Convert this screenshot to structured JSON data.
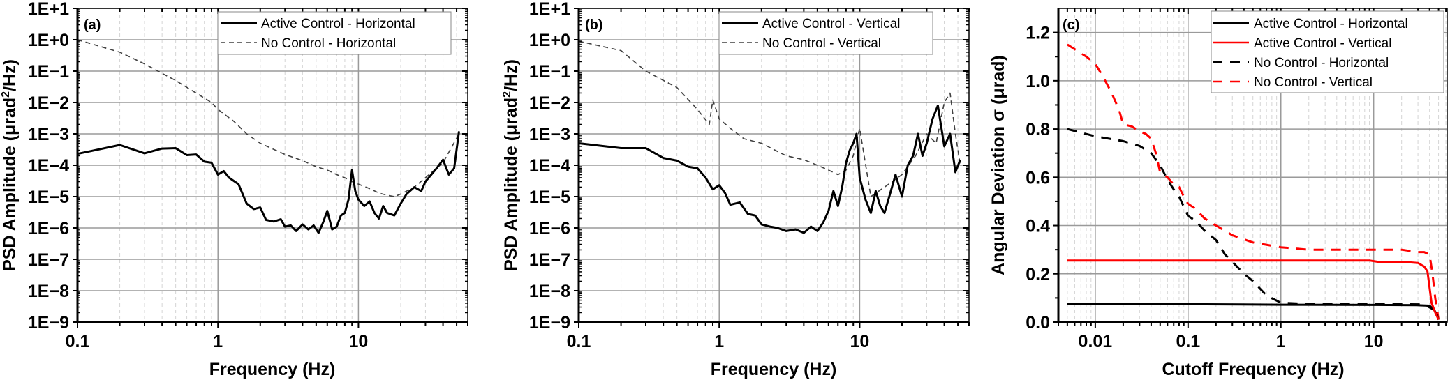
{
  "chart_data": [
    {
      "id": "a",
      "type": "line",
      "panel_label": "(a)",
      "title": "",
      "xlabel": "Frequency (Hz)",
      "ylabel": "PSD Amplitude (μrad²/Hz)",
      "xscale": "log",
      "yscale": "log",
      "xlim": [
        0.1,
        60
      ],
      "ylim": [
        1e-09,
        10
      ],
      "xticks": [
        "0.1",
        "1",
        "10"
      ],
      "yticks": [
        "1E+1",
        "1E+0",
        "1E−1",
        "1E−2",
        "1E−3",
        "1E−4",
        "1E−5",
        "1E−6",
        "1E−7",
        "1E−8",
        "1E−9"
      ],
      "grid": true,
      "legend_position": "upper right",
      "series": [
        {
          "name": "Active Control - Horizontal",
          "style": "solid",
          "color": "#000000",
          "x": [
            0.1,
            0.2,
            0.3,
            0.4,
            0.5,
            0.6,
            0.7,
            0.8,
            0.9,
            1.0,
            1.1,
            1.2,
            1.4,
            1.6,
            1.8,
            2.0,
            2.2,
            2.5,
            2.8,
            3.0,
            3.3,
            3.6,
            4.0,
            4.4,
            4.8,
            5.2,
            5.6,
            6.0,
            6.5,
            7.0,
            7.5,
            8.0,
            8.5,
            9.0,
            9.5,
            10,
            11,
            12,
            13,
            14,
            15,
            16,
            18,
            20,
            22,
            25,
            28,
            30,
            33,
            36,
            40,
            44,
            48,
            52
          ],
          "y": [
            0.00023,
            0.00044,
            0.00024,
            0.00034,
            0.00035,
            0.00021,
            0.00022,
            0.00013,
            0.00012,
            5e-05,
            6.5e-05,
            4e-05,
            2.5e-05,
            6e-06,
            4e-06,
            4.5e-06,
            1.8e-06,
            1.6e-06,
            1.9e-06,
            1.1e-06,
            1.2e-06,
            8e-07,
            1.3e-06,
            9e-07,
            1.2e-06,
            7e-07,
            1.5e-06,
            3.5e-06,
            9e-07,
            1.1e-06,
            2.5e-06,
            3e-06,
            8e-06,
            7e-05,
            1.5e-05,
            8e-06,
            5e-06,
            7e-06,
            3e-06,
            2e-06,
            5e-06,
            3e-06,
            2.5e-06,
            6e-06,
            1.2e-05,
            2e-05,
            1.5e-05,
            3e-05,
            5e-05,
            8e-05,
            0.00015,
            5e-05,
            8e-05,
            0.0012
          ]
        },
        {
          "name": "No Control - Horizontal",
          "style": "dashed",
          "color": "#404040",
          "x": [
            0.1,
            0.2,
            0.3,
            0.4,
            0.5,
            0.7,
            0.9,
            1.0,
            1.3,
            1.6,
            2.0,
            3.0,
            4.0,
            5.0,
            6.0,
            7.0,
            8.0,
            9.0,
            10,
            12,
            14,
            16,
            18,
            20,
            25,
            30,
            40,
            52
          ],
          "y": [
            1.0,
            0.4,
            0.17,
            0.085,
            0.05,
            0.02,
            0.01,
            0.006,
            0.0025,
            0.001,
            0.0005,
            0.00022,
            0.00014,
            9e-05,
            7e-05,
            5e-05,
            4e-05,
            3e-05,
            2.5e-05,
            1.8e-05,
            1.3e-05,
            1.1e-05,
            1e-05,
            1.2e-05,
            2e-05,
            4e-05,
            0.00012,
            0.001
          ]
        }
      ]
    },
    {
      "id": "b",
      "type": "line",
      "panel_label": "(b)",
      "title": "",
      "xlabel": "Frequency (Hz)",
      "ylabel": "PSD Amplitude (μrad²/Hz)",
      "xscale": "log",
      "yscale": "log",
      "xlim": [
        0.1,
        60
      ],
      "ylim": [
        1e-09,
        10
      ],
      "xticks": [
        "0.1",
        "1",
        "10"
      ],
      "yticks": [
        "1E+1",
        "1E+0",
        "1E−1",
        "1E−2",
        "1E−3",
        "1E−4",
        "1E−5",
        "1E−6",
        "1E−7",
        "1E−8",
        "1E−9"
      ],
      "grid": true,
      "legend_position": "upper right",
      "series": [
        {
          "name": "Active Control - Vertical",
          "style": "solid",
          "color": "#000000",
          "x": [
            0.1,
            0.2,
            0.3,
            0.4,
            0.5,
            0.6,
            0.7,
            0.8,
            0.9,
            1.0,
            1.1,
            1.2,
            1.4,
            1.6,
            1.8,
            2.0,
            2.3,
            2.6,
            3.0,
            3.5,
            4.0,
            4.5,
            5.0,
            5.5,
            6.0,
            6.5,
            7.0,
            7.5,
            8.0,
            8.5,
            9.0,
            9.5,
            10,
            11,
            12,
            13,
            14,
            15,
            16,
            18,
            20,
            22,
            24,
            26,
            28,
            30,
            33,
            36,
            40,
            44,
            48,
            52
          ],
          "y": [
            0.0005,
            0.00035,
            0.00035,
            0.00017,
            0.00014,
            9e-05,
            8e-05,
            4e-05,
            1.7e-05,
            2.3e-05,
            1.3e-05,
            5.5e-06,
            6.5e-06,
            2.8e-06,
            2.5e-06,
            1.3e-06,
            1.1e-06,
            1e-06,
            8e-07,
            9e-07,
            7e-07,
            1.1e-06,
            8e-07,
            1.5e-06,
            3.5e-06,
            1.5e-05,
            5e-06,
            2e-05,
            0.00012,
            0.0003,
            0.0005,
            0.001,
            4e-05,
            8e-06,
            3e-06,
            1.5e-05,
            5e-06,
            3e-06,
            8e-06,
            5e-05,
            1e-05,
            0.0001,
            0.0002,
            0.001,
            0.0002,
            0.0005,
            0.003,
            0.008,
            0.0004,
            0.001,
            6e-05,
            0.00015
          ]
        },
        {
          "name": "No Control - Vertical",
          "style": "dashed",
          "color": "#404040",
          "x": [
            0.1,
            0.2,
            0.3,
            0.5,
            0.7,
            0.85,
            0.9,
            1.0,
            1.2,
            1.5,
            2.0,
            2.5,
            3.0,
            4.0,
            5.0,
            6.0,
            7.0,
            8.0,
            9.0,
            10,
            12,
            15,
            20,
            25,
            30,
            35,
            40,
            44,
            48,
            52
          ],
          "y": [
            0.9,
            0.45,
            0.1,
            0.03,
            0.006,
            0.002,
            0.012,
            0.003,
            0.0015,
            0.0007,
            0.0005,
            0.0003,
            0.0002,
            0.00015,
            0.0001,
            7e-05,
            5e-05,
            7e-05,
            0.0002,
            0.0015,
            1e-05,
            2e-05,
            5e-05,
            0.0002,
            0.001,
            0.0005,
            0.01,
            0.02,
            0.001,
            0.0001
          ]
        }
      ]
    },
    {
      "id": "c",
      "type": "line",
      "panel_label": "(c)",
      "title": "",
      "xlabel": "Cutoff Frequency (Hz)",
      "ylabel": "Angular Deviation σ (μrad)",
      "xscale": "log",
      "yscale": "linear",
      "xlim": [
        0.004,
        62
      ],
      "ylim": [
        0.0,
        1.3
      ],
      "xticks": [
        "0.01",
        "0.1",
        "1",
        "10"
      ],
      "yticks": [
        "0.0",
        "0.2",
        "0.4",
        "0.6",
        "0.8",
        "1.0",
        "1.2"
      ],
      "grid": true,
      "legend_position": "upper right",
      "series": [
        {
          "name": "Active Control - Horizontal",
          "style": "solid",
          "color": "#000000",
          "x": [
            0.005,
            0.01,
            0.1,
            1,
            10,
            30,
            40,
            45,
            48,
            50
          ],
          "y": [
            0.075,
            0.075,
            0.074,
            0.072,
            0.071,
            0.07,
            0.068,
            0.05,
            0.03,
            0.01
          ]
        },
        {
          "name": "Active Control - Vertical",
          "style": "solid",
          "color": "#ff0000",
          "x": [
            0.005,
            0.01,
            0.1,
            1,
            9,
            11,
            20,
            30,
            35,
            38,
            42,
            46,
            50
          ],
          "y": [
            0.255,
            0.255,
            0.255,
            0.255,
            0.255,
            0.25,
            0.25,
            0.245,
            0.23,
            0.21,
            0.08,
            0.04,
            0.01
          ]
        },
        {
          "name": "No Control - Horizontal",
          "style": "dashed",
          "color": "#000000",
          "x": [
            0.005,
            0.01,
            0.02,
            0.03,
            0.04,
            0.05,
            0.06,
            0.07,
            0.08,
            0.1,
            0.12,
            0.15,
            0.2,
            0.25,
            0.3,
            0.4,
            0.5,
            0.7,
            1,
            2,
            5,
            10,
            20,
            35,
            45,
            50
          ],
          "y": [
            0.8,
            0.77,
            0.75,
            0.73,
            0.7,
            0.65,
            0.59,
            0.55,
            0.52,
            0.44,
            0.42,
            0.38,
            0.34,
            0.28,
            0.25,
            0.2,
            0.17,
            0.11,
            0.08,
            0.075,
            0.075,
            0.075,
            0.074,
            0.073,
            0.05,
            0.01
          ]
        },
        {
          "name": "No Control - Vertical",
          "style": "dashed",
          "color": "#ff0000",
          "x": [
            0.005,
            0.008,
            0.01,
            0.012,
            0.015,
            0.018,
            0.02,
            0.025,
            0.03,
            0.035,
            0.04,
            0.045,
            0.05,
            0.06,
            0.07,
            0.08,
            0.09,
            0.1,
            0.12,
            0.15,
            0.2,
            0.3,
            0.5,
            1,
            2,
            5,
            10,
            20,
            30,
            35,
            40,
            43,
            46,
            50
          ],
          "y": [
            1.15,
            1.1,
            1.07,
            1.02,
            0.95,
            0.88,
            0.82,
            0.81,
            0.79,
            0.78,
            0.76,
            0.7,
            0.62,
            0.6,
            0.57,
            0.56,
            0.52,
            0.49,
            0.47,
            0.43,
            0.4,
            0.36,
            0.33,
            0.31,
            0.3,
            0.3,
            0.3,
            0.3,
            0.29,
            0.29,
            0.28,
            0.2,
            0.1,
            0.01
          ]
        }
      ]
    }
  ],
  "panels": {
    "a": {
      "label": "(a)",
      "xlabel": "Frequency (Hz)",
      "ylabel_main": "PSD Amplitude (μrad",
      "ylabel_sup": "2",
      "ylabel_tail": "/Hz)",
      "legend": [
        "Active Control - Horizontal",
        "No Control - Horizontal"
      ]
    },
    "b": {
      "label": "(b)",
      "xlabel": "Frequency (Hz)",
      "ylabel_main": "PSD Amplitude (μrad",
      "ylabel_sup": "2",
      "ylabel_tail": "/Hz)",
      "legend": [
        "Active Control - Vertical",
        "No Control - Vertical"
      ]
    },
    "c": {
      "label": "(c)",
      "xlabel": "Cutoff Frequency (Hz)",
      "ylabel_main": "Angular Deviation σ (μrad)",
      "legend": [
        "Active Control - Horizontal",
        "Active Control - Vertical",
        "No Control - Horizontal",
        "No Control - Vertical"
      ]
    }
  },
  "colors": {
    "black": "#000000",
    "red": "#ff0000",
    "dark_gray": "#404040",
    "grid_major": "#9a9a9a",
    "grid_minor": "#d4d4d4"
  }
}
